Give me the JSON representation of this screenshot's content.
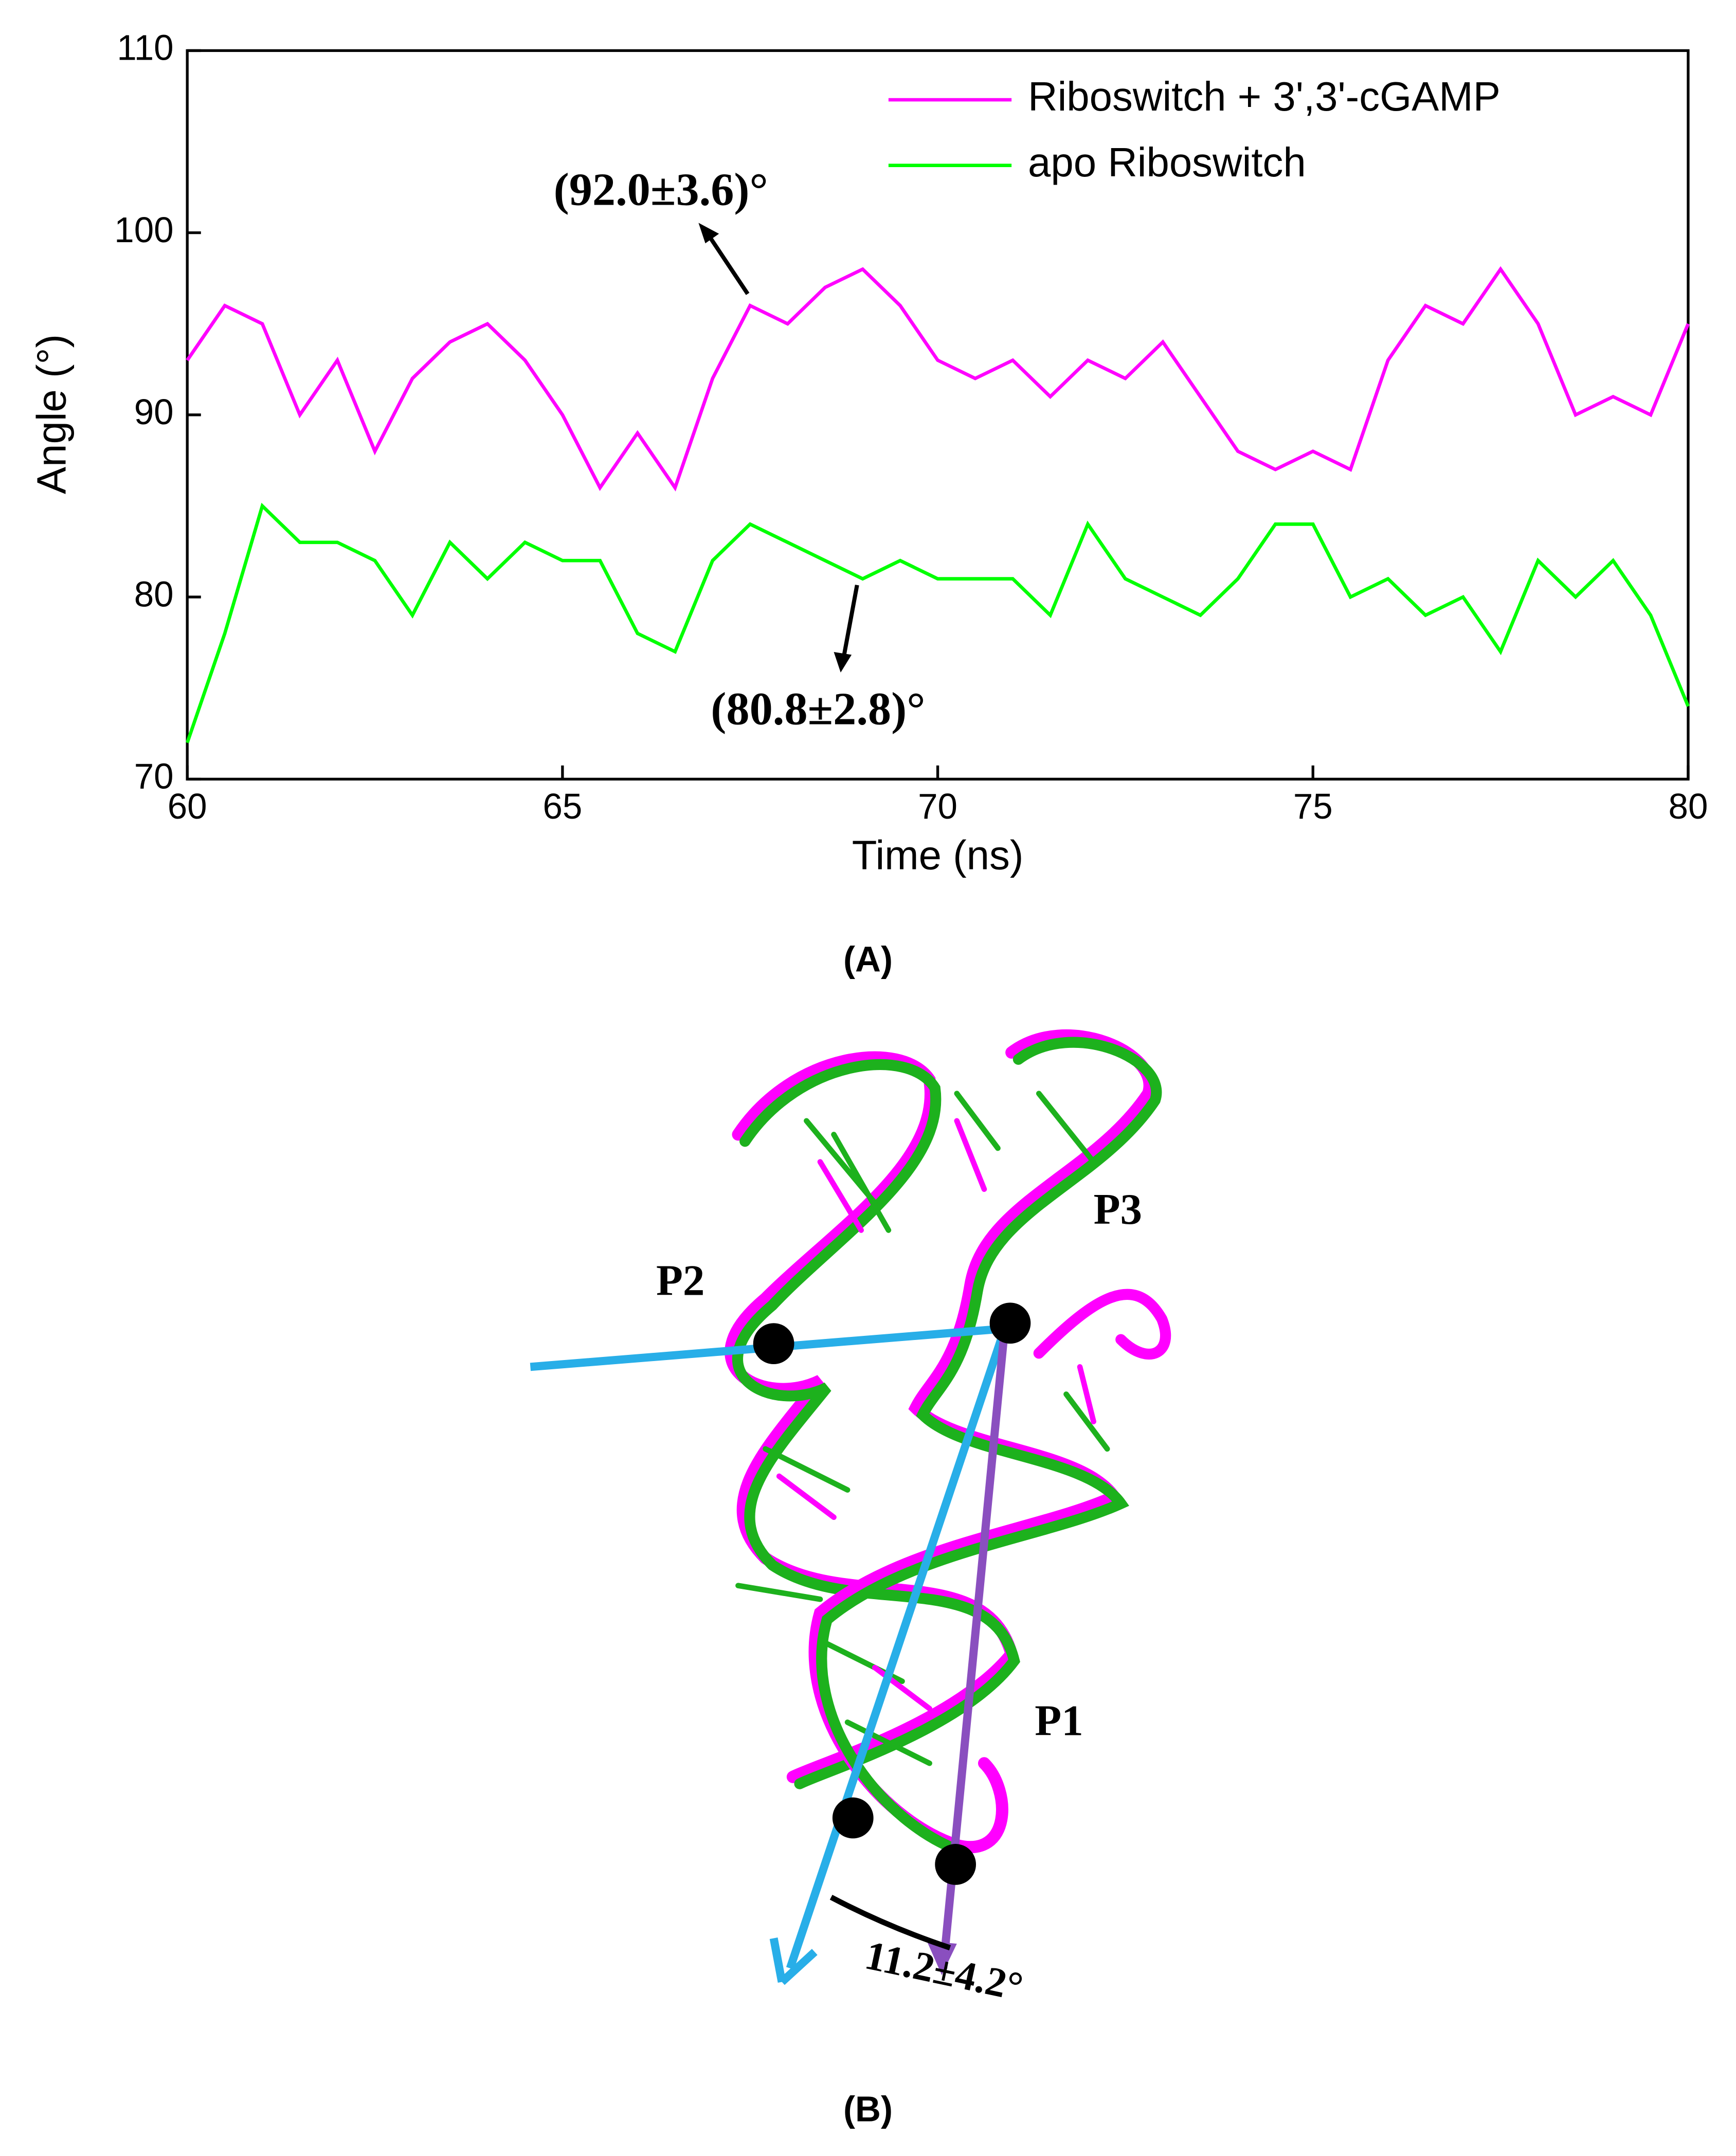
{
  "chart_data": {
    "type": "line",
    "x_label": "Time (ns)",
    "y_label": "Angle (°)",
    "x": [
      60,
      60.5,
      61,
      61.5,
      62,
      62.5,
      63,
      63.5,
      64,
      64.5,
      65,
      65.5,
      66,
      66.5,
      67,
      67.5,
      68,
      68.5,
      69,
      69.5,
      70,
      70.5,
      71,
      71.5,
      72,
      72.5,
      73,
      73.5,
      74,
      74.5,
      75,
      75.5,
      76,
      76.5,
      77,
      77.5,
      78,
      78.5,
      79,
      79.5,
      80
    ],
    "series": [
      {
        "name": "Riboswitch + 3',3'-cGAMP",
        "color": "#ff00ff",
        "values": [
          93,
          96,
          95,
          90,
          93,
          88,
          92,
          94,
          95,
          93,
          90,
          86,
          89,
          86,
          92,
          96,
          95,
          97,
          98,
          96,
          93,
          92,
          93,
          91,
          93,
          92,
          94,
          91,
          88,
          87,
          88,
          87,
          93,
          96,
          95,
          98,
          95,
          90,
          91,
          90,
          95
        ]
      },
      {
        "name": "apo Riboswitch",
        "color": "#00ff00",
        "values": [
          72,
          78,
          85,
          83,
          83,
          82,
          79,
          83,
          81,
          83,
          82,
          82,
          78,
          77,
          82,
          84,
          83,
          82,
          81,
          82,
          81,
          81,
          81,
          79,
          84,
          81,
          80,
          79,
          81,
          84,
          84,
          80,
          81,
          79,
          80,
          77,
          82,
          80,
          82,
          79,
          74
        ]
      }
    ],
    "xlim": [
      60,
      80
    ],
    "xticks": [
      60,
      65,
      70,
      75,
      80
    ],
    "ylim": [
      70,
      110
    ],
    "yticks": [
      70,
      80,
      90,
      100,
      110
    ],
    "legend": "upper right",
    "annotations": [
      "(92.0±3.6)°",
      "(80.8±2.8)°"
    ],
    "panel_label": "(A)"
  },
  "structure": {
    "labels": [
      "P2",
      "P3",
      "P1"
    ],
    "angle_label": "11.2±4.2°",
    "panel_label": "(B)"
  }
}
